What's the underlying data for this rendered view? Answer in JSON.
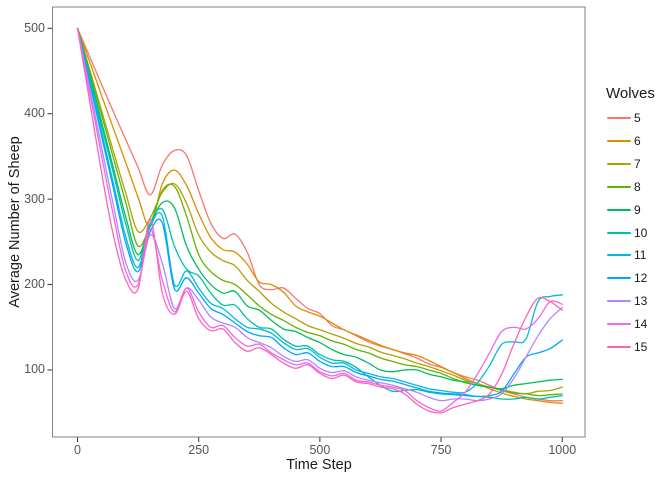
{
  "legend": {
    "title": "Wolves"
  },
  "chart_data": {
    "type": "line",
    "title": "",
    "xlabel": "Time Step",
    "ylabel": "Average Number of Sheep",
    "x_ticks": [
      0,
      250,
      500,
      750,
      1000
    ],
    "y_ticks": [
      100,
      200,
      300,
      400,
      500
    ],
    "xlim": [
      -52,
      1052
    ],
    "ylim": [
      22,
      525
    ],
    "grid": false,
    "legend_position": "right",
    "panel_border_color": "#808080",
    "tick_color": "#333333",
    "x": [
      0,
      25,
      50,
      75,
      100,
      125,
      150,
      175,
      200,
      225,
      250,
      275,
      300,
      325,
      350,
      375,
      400,
      425,
      450,
      475,
      500,
      525,
      550,
      575,
      600,
      625,
      650,
      675,
      700,
      725,
      750,
      775,
      800,
      825,
      850,
      875,
      900,
      925,
      950,
      975,
      1000
    ],
    "series": [
      {
        "name": "5",
        "color": "#F8766D",
        "values": [
          500,
          467,
          434,
          401,
          369,
          337,
          305,
          340,
          357,
          351,
          310,
          272,
          254,
          259,
          238,
          200,
          194,
          196,
          184,
          172,
          166,
          152,
          147,
          140,
          133,
          128,
          124,
          119,
          114,
          107,
          103,
          97,
          92,
          88,
          82,
          76,
          72,
          68,
          66,
          64,
          64
        ]
      },
      {
        "name": "6",
        "color": "#DB8E00",
        "values": [
          500,
          461,
          421,
          381,
          342,
          302,
          268,
          318,
          334,
          316,
          283,
          255,
          241,
          238,
          224,
          203,
          200,
          191,
          175,
          168,
          163,
          155,
          147,
          141,
          135,
          129,
          124,
          120,
          117,
          111,
          104,
          97,
          90,
          84,
          78,
          73,
          69,
          66,
          64,
          62,
          61
        ]
      },
      {
        "name": "7",
        "color": "#AEA200",
        "values": [
          500,
          452,
          403,
          354,
          306,
          262,
          278,
          308,
          318,
          295,
          258,
          238,
          228,
          222,
          205,
          192,
          178,
          168,
          160,
          152,
          147,
          142,
          137,
          131,
          127,
          121,
          117,
          113,
          108,
          104,
          99,
          94,
          88,
          84,
          80,
          77,
          74,
          72,
          75,
          76,
          80
        ]
      },
      {
        "name": "8",
        "color": "#64B200",
        "values": [
          500,
          450,
          398,
          346,
          295,
          245,
          270,
          310,
          315,
          280,
          235,
          215,
          205,
          200,
          188,
          175,
          165,
          158,
          150,
          144,
          140,
          134,
          130,
          124,
          120,
          114,
          110,
          106,
          104,
          100,
          96,
          90,
          85,
          82,
          80,
          76,
          73,
          72,
          70,
          71,
          72
        ]
      },
      {
        "name": "9",
        "color": "#00BD5C",
        "values": [
          500,
          446,
          390,
          334,
          278,
          235,
          270,
          296,
          290,
          245,
          218,
          200,
          190,
          192,
          175,
          170,
          158,
          148,
          145,
          138,
          132,
          124,
          118,
          115,
          108,
          100,
          98,
          100,
          100,
          95,
          92,
          88,
          86,
          82,
          80,
          78,
          82,
          84,
          86,
          88,
          89
        ]
      },
      {
        "name": "10",
        "color": "#00C1A7",
        "values": [
          500,
          443,
          385,
          328,
          270,
          228,
          272,
          288,
          245,
          218,
          210,
          190,
          176,
          176,
          160,
          150,
          148,
          136,
          128,
          128,
          118,
          112,
          110,
          103,
          92,
          82,
          75,
          76,
          77,
          74,
          72,
          71,
          70,
          69,
          68,
          66,
          66,
          68,
          66,
          68,
          70
        ]
      },
      {
        "name": "11",
        "color": "#00BADE",
        "values": [
          500,
          440,
          378,
          316,
          255,
          220,
          268,
          280,
          200,
          216,
          196,
          178,
          172,
          160,
          150,
          148,
          143,
          132,
          124,
          125,
          115,
          108,
          108,
          100,
          96,
          92,
          90,
          86,
          82,
          78,
          76,
          74,
          74,
          85,
          105,
          130,
          133,
          136,
          180,
          186,
          188
        ]
      },
      {
        "name": "12",
        "color": "#00A6FF",
        "values": [
          500,
          437,
          373,
          310,
          248,
          215,
          262,
          272,
          195,
          208,
          190,
          172,
          165,
          155,
          145,
          140,
          138,
          126,
          118,
          120,
          110,
          104,
          104,
          97,
          93,
          89,
          87,
          83,
          79,
          75,
          73,
          72,
          71,
          69,
          70,
          75,
          95,
          115,
          120,
          125,
          135
        ]
      },
      {
        "name": "13",
        "color": "#B385FF",
        "values": [
          500,
          430,
          360,
          290,
          225,
          205,
          258,
          225,
          172,
          196,
          182,
          162,
          155,
          150,
          138,
          132,
          126,
          116,
          110,
          112,
          102,
          97,
          99,
          92,
          88,
          85,
          82,
          78,
          74,
          68,
          64,
          66,
          66,
          64,
          66,
          72,
          90,
          115,
          140,
          160,
          173
        ]
      },
      {
        "name": "14",
        "color": "#EF67EB",
        "values": [
          500,
          425,
          350,
          278,
          215,
          200,
          265,
          205,
          168,
          196,
          168,
          150,
          152,
          138,
          128,
          130,
          120,
          112,
          106,
          108,
          98,
          93,
          96,
          88,
          86,
          82,
          80,
          76,
          64,
          56,
          52,
          62,
          74,
          95,
          120,
          145,
          150,
          148,
          160,
          180,
          177
        ]
      },
      {
        "name": "15",
        "color": "#FF63B6",
        "values": [
          500,
          415,
          330,
          255,
          205,
          195,
          276,
          190,
          165,
          192,
          160,
          146,
          148,
          132,
          122,
          126,
          118,
          108,
          102,
          106,
          96,
          90,
          94,
          86,
          84,
          80,
          78,
          72,
          60,
          52,
          50,
          56,
          60,
          64,
          72,
          95,
          130,
          162,
          184,
          180,
          170
        ]
      }
    ]
  }
}
